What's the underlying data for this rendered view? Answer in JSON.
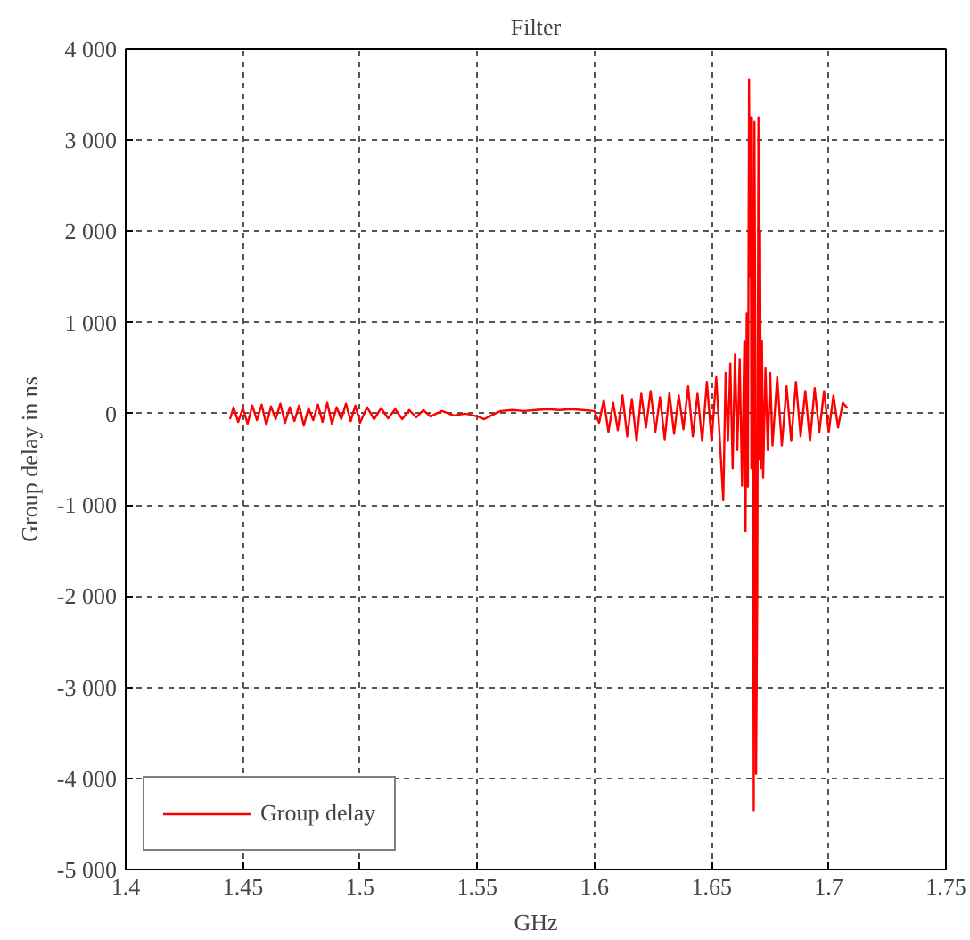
{
  "chart_data": {
    "type": "line",
    "title": "Filter",
    "xlabel": "GHz",
    "ylabel": "Group delay in ns",
    "xlim": [
      1.4,
      1.75
    ],
    "xticks": [
      1.4,
      1.45,
      1.5,
      1.55,
      1.6,
      1.65,
      1.7,
      1.75
    ],
    "ylim": [
      -5000,
      4000
    ],
    "yticks": [
      {
        "value": -5000,
        "label": "-5 000"
      },
      {
        "value": -4000,
        "label": "-4 000"
      },
      {
        "value": -3000,
        "label": "-3 000"
      },
      {
        "value": -2000,
        "label": "-2 000"
      },
      {
        "value": -1000,
        "label": "-1 000"
      },
      0,
      {
        "value": 1000,
        "label": "1 000"
      },
      {
        "value": 2000,
        "label": "2 000"
      },
      {
        "value": 3000,
        "label": "3 000"
      },
      {
        "value": 4000,
        "label": "4 000"
      }
    ],
    "grid": true,
    "legend": "bottom left",
    "marker": "none",
    "line_style": "solid",
    "series": [
      {
        "name": "Group delay",
        "color": "#ff0000",
        "x": [
          1.4445,
          1.446,
          1.448,
          1.45,
          1.452,
          1.454,
          1.456,
          1.458,
          1.46,
          1.462,
          1.464,
          1.466,
          1.468,
          1.47,
          1.472,
          1.474,
          1.476,
          1.478,
          1.48,
          1.482,
          1.484,
          1.486,
          1.488,
          1.49,
          1.492,
          1.494,
          1.496,
          1.498,
          1.5,
          1.503,
          1.506,
          1.509,
          1.512,
          1.515,
          1.518,
          1.521,
          1.524,
          1.527,
          1.53,
          1.535,
          1.54,
          1.545,
          1.55,
          1.553,
          1.556,
          1.56,
          1.565,
          1.57,
          1.575,
          1.58,
          1.585,
          1.59,
          1.595,
          1.6,
          1.602,
          1.604,
          1.606,
          1.608,
          1.61,
          1.612,
          1.614,
          1.616,
          1.618,
          1.62,
          1.622,
          1.624,
          1.626,
          1.628,
          1.63,
          1.632,
          1.634,
          1.636,
          1.638,
          1.64,
          1.642,
          1.644,
          1.646,
          1.648,
          1.65,
          1.652,
          1.654,
          1.655,
          1.656,
          1.657,
          1.658,
          1.659,
          1.66,
          1.661,
          1.662,
          1.663,
          1.664,
          1.6645,
          1.665,
          1.6655,
          1.666,
          1.6663,
          1.6667,
          1.667,
          1.6672,
          1.6676,
          1.668,
          1.6683,
          1.6687,
          1.669,
          1.6695,
          1.67,
          1.6703,
          1.6707,
          1.671,
          1.6715,
          1.672,
          1.673,
          1.674,
          1.675,
          1.676,
          1.678,
          1.68,
          1.682,
          1.684,
          1.686,
          1.688,
          1.69,
          1.692,
          1.694,
          1.696,
          1.698,
          1.7,
          1.702,
          1.704,
          1.706,
          1.708
        ],
        "values": [
          -60,
          70,
          -90,
          60,
          -110,
          90,
          -70,
          100,
          -120,
          80,
          -60,
          110,
          -100,
          70,
          -80,
          90,
          -130,
          60,
          -70,
          100,
          -90,
          120,
          -110,
          70,
          -60,
          110,
          -80,
          90,
          -100,
          70,
          -60,
          60,
          -50,
          50,
          -60,
          40,
          -40,
          40,
          -30,
          30,
          -20,
          0,
          -30,
          -60,
          -20,
          30,
          40,
          30,
          40,
          50,
          40,
          50,
          40,
          30,
          -100,
          150,
          -200,
          120,
          -180,
          200,
          -250,
          160,
          -300,
          220,
          -150,
          250,
          -200,
          180,
          -280,
          230,
          -220,
          200,
          -170,
          300,
          -250,
          220,
          -300,
          350,
          -300,
          400,
          -500,
          -950,
          450,
          -300,
          550,
          -600,
          650,
          -400,
          600,
          -790,
          800,
          -1290,
          1100,
          -800,
          3660,
          1500,
          3250,
          -600,
          3250,
          1000,
          -4350,
          3200,
          500,
          -3950,
          -2000,
          3250,
          -500,
          2000,
          -600,
          800,
          -700,
          500,
          -400,
          450,
          -350,
          400,
          -350,
          300,
          -300,
          350,
          -250,
          250,
          -300,
          280,
          -200,
          250,
          -200,
          200,
          -150,
          120,
          60
        ]
      }
    ]
  }
}
